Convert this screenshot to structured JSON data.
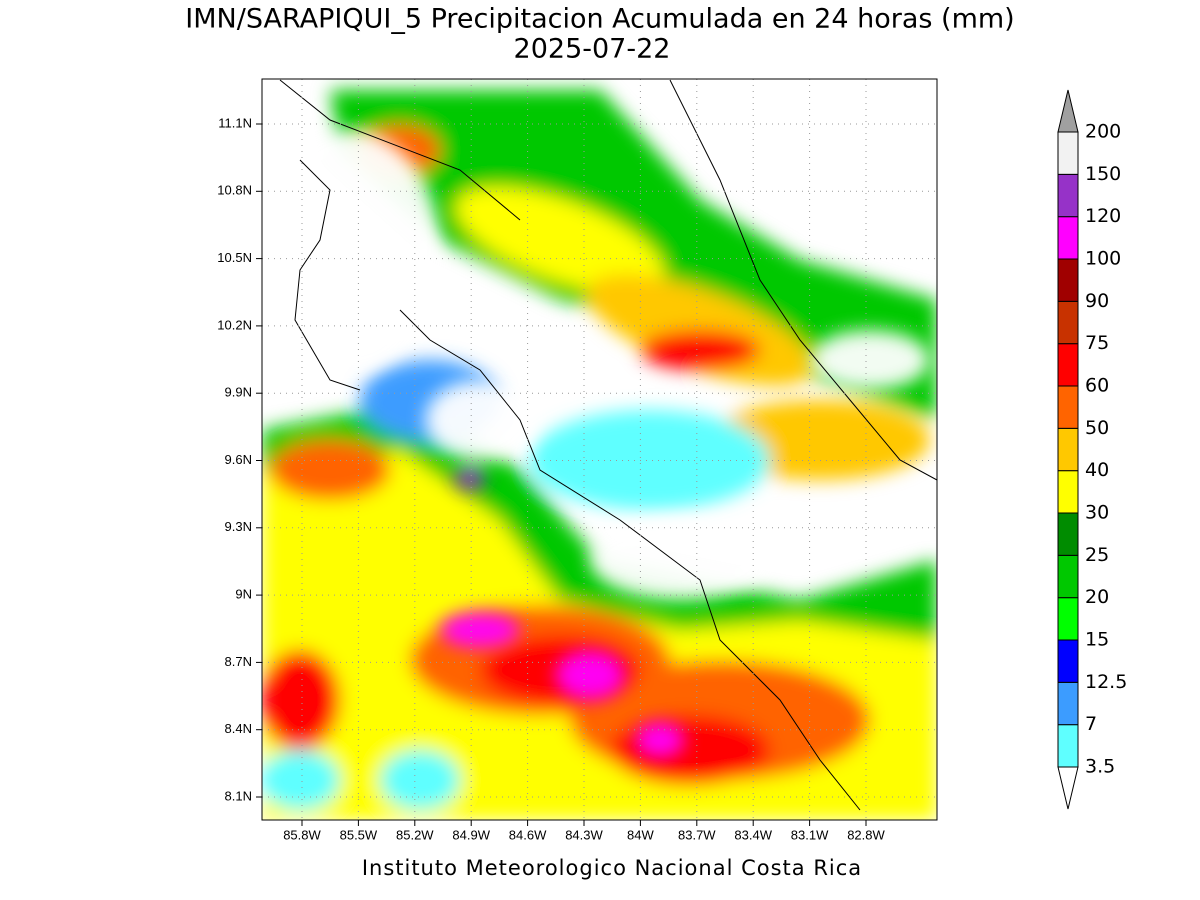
{
  "header": {
    "title": "IMN/SARAPIQUI_5 Precipitacion Acumulada en 24 horas (mm)",
    "subtitle": "2025-07-22"
  },
  "map": {
    "lat_labels": [
      "11.1N",
      "10.8N",
      "10.5N",
      "10.2N",
      "9.9N",
      "9.6N",
      "9.3N",
      "9N",
      "8.7N",
      "8.4N",
      "8.1N"
    ],
    "lon_labels": [
      "85.8W",
      "85.5W",
      "85.2W",
      "84.9W",
      "84.6W",
      "84.3W",
      "84W",
      "83.7W",
      "83.4W",
      "83.1W",
      "82.8W"
    ]
  },
  "colorbar": {
    "levels": [
      3.5,
      7,
      12.5,
      15,
      20,
      25,
      30,
      40,
      50,
      60,
      75,
      90,
      100,
      120,
      150,
      200
    ],
    "colors": [
      "#ffffff",
      "#5fffff",
      "#3c9cff",
      "#0000ff",
      "#00ff00",
      "#00c800",
      "#008c00",
      "#ffff00",
      "#ffc800",
      "#ff6400",
      "#ff0000",
      "#c83200",
      "#a00000",
      "#ff00ff",
      "#9632c8",
      "#f2f2f2",
      "#a0a0a0"
    ]
  },
  "footer": "Instituto Meteorologico Nacional Costa Rica"
}
